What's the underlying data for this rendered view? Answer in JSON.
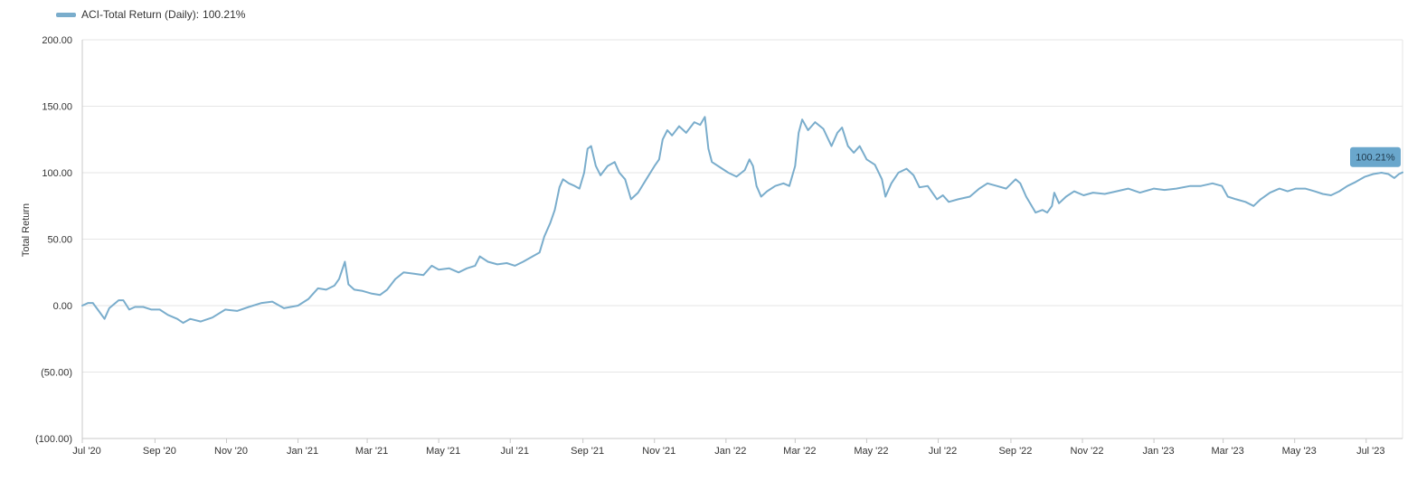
{
  "legend": {
    "series_name": "ACI-Total Return (Daily)",
    "separator": ":",
    "last_value": "100.21%"
  },
  "colors": {
    "series": "#7aadcc",
    "last_badge": "#6aa7cc",
    "grid": "#e6e6e6",
    "axis": "#c8c8c8"
  },
  "chart_data": {
    "type": "line",
    "title": "",
    "xlabel": "",
    "ylabel": "Total Return",
    "ylim": [
      -100,
      200
    ],
    "y_ticks": [
      -100,
      -50,
      0,
      50,
      100,
      150,
      200
    ],
    "y_tick_labels": [
      "(100.00)",
      "(50.00)",
      "0.00",
      "50.00",
      "100.00",
      "150.00",
      "200.00"
    ],
    "x_range": [
      "2020-07-01",
      "2023-08-01"
    ],
    "x_ticks": [
      {
        "date": "2020-07-01",
        "label": "Jul '20"
      },
      {
        "date": "2020-09-01",
        "label": "Sep '20"
      },
      {
        "date": "2020-11-01",
        "label": "Nov '20"
      },
      {
        "date": "2021-01-01",
        "label": "Jan '21"
      },
      {
        "date": "2021-03-01",
        "label": "Mar '21"
      },
      {
        "date": "2021-05-01",
        "label": "May '21"
      },
      {
        "date": "2021-07-01",
        "label": "Jul '21"
      },
      {
        "date": "2021-09-01",
        "label": "Sep '21"
      },
      {
        "date": "2021-11-01",
        "label": "Nov '21"
      },
      {
        "date": "2022-01-01",
        "label": "Jan '22"
      },
      {
        "date": "2022-03-01",
        "label": "Mar '22"
      },
      {
        "date": "2022-05-01",
        "label": "May '22"
      },
      {
        "date": "2022-07-01",
        "label": "Jul '22"
      },
      {
        "date": "2022-09-01",
        "label": "Sep '22"
      },
      {
        "date": "2022-11-01",
        "label": "Nov '22"
      },
      {
        "date": "2023-01-01",
        "label": "Jan '23"
      },
      {
        "date": "2023-03-01",
        "label": "Mar '23"
      },
      {
        "date": "2023-05-01",
        "label": "May '23"
      },
      {
        "date": "2023-07-01",
        "label": "Jul '23"
      }
    ],
    "grid": true,
    "legend_position": "top-left",
    "series": [
      {
        "name": "ACI-Total Return (Daily)",
        "last_label": "100.21%",
        "points": [
          [
            "2020-07-01",
            0
          ],
          [
            "2020-07-06",
            2
          ],
          [
            "2020-07-10",
            2
          ],
          [
            "2020-07-15",
            -4
          ],
          [
            "2020-07-20",
            -10
          ],
          [
            "2020-07-24",
            -2
          ],
          [
            "2020-08-01",
            4
          ],
          [
            "2020-08-05",
            4
          ],
          [
            "2020-08-10",
            -3
          ],
          [
            "2020-08-15",
            -1
          ],
          [
            "2020-08-22",
            -1
          ],
          [
            "2020-08-29",
            -3
          ],
          [
            "2020-09-05",
            -3
          ],
          [
            "2020-09-12",
            -7
          ],
          [
            "2020-09-20",
            -10
          ],
          [
            "2020-09-25",
            -13
          ],
          [
            "2020-10-01",
            -10
          ],
          [
            "2020-10-10",
            -12
          ],
          [
            "2020-10-20",
            -9
          ],
          [
            "2020-10-31",
            -3
          ],
          [
            "2020-11-10",
            -4
          ],
          [
            "2020-11-20",
            -1
          ],
          [
            "2020-12-01",
            2
          ],
          [
            "2020-12-10",
            3
          ],
          [
            "2020-12-20",
            -2
          ],
          [
            "2021-01-01",
            0
          ],
          [
            "2021-01-10",
            5
          ],
          [
            "2021-01-18",
            13
          ],
          [
            "2021-01-25",
            12
          ],
          [
            "2021-02-01",
            15
          ],
          [
            "2021-02-05",
            20
          ],
          [
            "2021-02-10",
            33
          ],
          [
            "2021-02-13",
            16
          ],
          [
            "2021-02-18",
            12
          ],
          [
            "2021-02-25",
            11
          ],
          [
            "2021-03-05",
            9
          ],
          [
            "2021-03-12",
            8
          ],
          [
            "2021-03-18",
            12
          ],
          [
            "2021-03-25",
            20
          ],
          [
            "2021-04-01",
            25
          ],
          [
            "2021-04-10",
            24
          ],
          [
            "2021-04-18",
            23
          ],
          [
            "2021-04-25",
            30
          ],
          [
            "2021-05-01",
            27
          ],
          [
            "2021-05-10",
            28
          ],
          [
            "2021-05-18",
            25
          ],
          [
            "2021-05-25",
            28
          ],
          [
            "2021-06-01",
            30
          ],
          [
            "2021-06-05",
            37
          ],
          [
            "2021-06-12",
            33
          ],
          [
            "2021-06-20",
            31
          ],
          [
            "2021-06-28",
            32
          ],
          [
            "2021-07-05",
            30
          ],
          [
            "2021-07-12",
            33
          ],
          [
            "2021-07-20",
            37
          ],
          [
            "2021-07-26",
            40
          ],
          [
            "2021-07-30",
            52
          ],
          [
            "2021-08-04",
            62
          ],
          [
            "2021-08-08",
            72
          ],
          [
            "2021-08-12",
            89
          ],
          [
            "2021-08-15",
            95
          ],
          [
            "2021-08-20",
            92
          ],
          [
            "2021-08-25",
            90
          ],
          [
            "2021-08-29",
            88
          ],
          [
            "2021-09-02",
            100
          ],
          [
            "2021-09-05",
            118
          ],
          [
            "2021-09-08",
            120
          ],
          [
            "2021-09-12",
            105
          ],
          [
            "2021-09-16",
            98
          ],
          [
            "2021-09-22",
            105
          ],
          [
            "2021-09-28",
            108
          ],
          [
            "2021-10-02",
            100
          ],
          [
            "2021-10-07",
            95
          ],
          [
            "2021-10-12",
            80
          ],
          [
            "2021-10-18",
            85
          ],
          [
            "2021-10-25",
            95
          ],
          [
            "2021-11-01",
            105
          ],
          [
            "2021-11-05",
            110
          ],
          [
            "2021-11-08",
            125
          ],
          [
            "2021-11-12",
            132
          ],
          [
            "2021-11-16",
            128
          ],
          [
            "2021-11-22",
            135
          ],
          [
            "2021-11-28",
            130
          ],
          [
            "2021-12-05",
            138
          ],
          [
            "2021-12-10",
            136
          ],
          [
            "2021-12-14",
            142
          ],
          [
            "2021-12-17",
            118
          ],
          [
            "2021-12-20",
            108
          ],
          [
            "2021-12-27",
            104
          ],
          [
            "2022-01-03",
            100
          ],
          [
            "2022-01-10",
            97
          ],
          [
            "2022-01-17",
            102
          ],
          [
            "2022-01-21",
            110
          ],
          [
            "2022-01-24",
            105
          ],
          [
            "2022-01-27",
            90
          ],
          [
            "2022-01-31",
            82
          ],
          [
            "2022-02-05",
            86
          ],
          [
            "2022-02-12",
            90
          ],
          [
            "2022-02-19",
            92
          ],
          [
            "2022-02-24",
            90
          ],
          [
            "2022-03-01",
            105
          ],
          [
            "2022-03-04",
            130
          ],
          [
            "2022-03-07",
            140
          ],
          [
            "2022-03-12",
            132
          ],
          [
            "2022-03-18",
            138
          ],
          [
            "2022-03-25",
            133
          ],
          [
            "2022-04-01",
            120
          ],
          [
            "2022-04-06",
            130
          ],
          [
            "2022-04-10",
            134
          ],
          [
            "2022-04-15",
            120
          ],
          [
            "2022-04-20",
            115
          ],
          [
            "2022-04-25",
            120
          ],
          [
            "2022-05-01",
            110
          ],
          [
            "2022-05-08",
            106
          ],
          [
            "2022-05-14",
            95
          ],
          [
            "2022-05-17",
            82
          ],
          [
            "2022-05-22",
            92
          ],
          [
            "2022-05-28",
            100
          ],
          [
            "2022-06-04",
            103
          ],
          [
            "2022-06-10",
            98
          ],
          [
            "2022-06-15",
            89
          ],
          [
            "2022-06-22",
            90
          ],
          [
            "2022-06-30",
            80
          ],
          [
            "2022-07-05",
            83
          ],
          [
            "2022-07-10",
            78
          ],
          [
            "2022-07-18",
            80
          ],
          [
            "2022-07-28",
            82
          ],
          [
            "2022-08-05",
            88
          ],
          [
            "2022-08-12",
            92
          ],
          [
            "2022-08-20",
            90
          ],
          [
            "2022-08-28",
            88
          ],
          [
            "2022-09-05",
            95
          ],
          [
            "2022-09-09",
            92
          ],
          [
            "2022-09-14",
            82
          ],
          [
            "2022-09-18",
            76
          ],
          [
            "2022-09-22",
            70
          ],
          [
            "2022-09-28",
            72
          ],
          [
            "2022-10-02",
            70
          ],
          [
            "2022-10-06",
            75
          ],
          [
            "2022-10-08",
            85
          ],
          [
            "2022-10-12",
            77
          ],
          [
            "2022-10-18",
            82
          ],
          [
            "2022-10-25",
            86
          ],
          [
            "2022-11-02",
            83
          ],
          [
            "2022-11-10",
            85
          ],
          [
            "2022-11-20",
            84
          ],
          [
            "2022-11-30",
            86
          ],
          [
            "2022-12-10",
            88
          ],
          [
            "2022-12-20",
            85
          ],
          [
            "2023-01-01",
            88
          ],
          [
            "2023-01-10",
            87
          ],
          [
            "2023-01-20",
            88
          ],
          [
            "2023-02-01",
            90
          ],
          [
            "2023-02-10",
            90
          ],
          [
            "2023-02-20",
            92
          ],
          [
            "2023-02-28",
            90
          ],
          [
            "2023-03-05",
            82
          ],
          [
            "2023-03-12",
            80
          ],
          [
            "2023-03-20",
            78
          ],
          [
            "2023-03-27",
            75
          ],
          [
            "2023-04-02",
            80
          ],
          [
            "2023-04-10",
            85
          ],
          [
            "2023-04-18",
            88
          ],
          [
            "2023-04-25",
            86
          ],
          [
            "2023-05-02",
            88
          ],
          [
            "2023-05-10",
            88
          ],
          [
            "2023-05-18",
            86
          ],
          [
            "2023-05-25",
            84
          ],
          [
            "2023-06-01",
            83
          ],
          [
            "2023-06-08",
            86
          ],
          [
            "2023-06-15",
            90
          ],
          [
            "2023-06-22",
            93
          ],
          [
            "2023-06-30",
            97
          ],
          [
            "2023-07-07",
            99
          ],
          [
            "2023-07-14",
            100
          ],
          [
            "2023-07-20",
            99
          ],
          [
            "2023-07-25",
            96
          ],
          [
            "2023-07-29",
            99
          ],
          [
            "2023-08-01",
            100.21
          ]
        ]
      }
    ]
  }
}
